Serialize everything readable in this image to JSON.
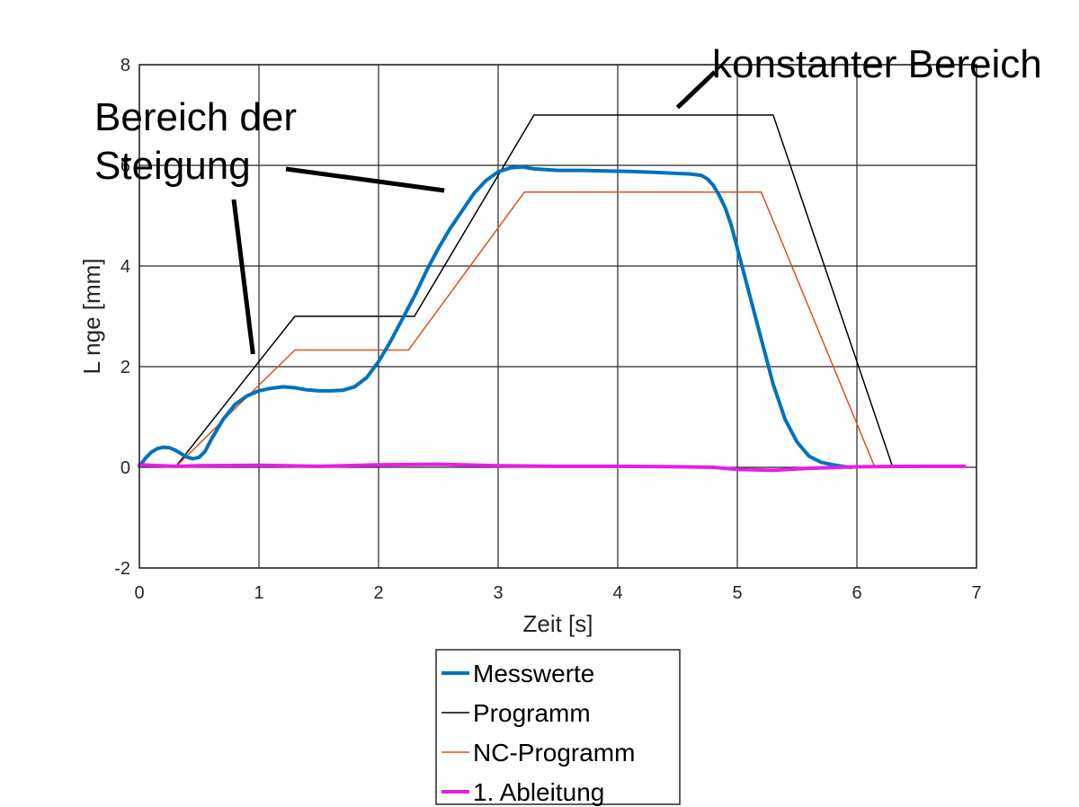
{
  "chart_data": {
    "type": "line",
    "title": "",
    "xlabel": "Zeit [s]",
    "ylabel": "L nge [mm]",
    "xlim": [
      0,
      7
    ],
    "ylim": [
      -2,
      8
    ],
    "xticks": [
      "0",
      "1",
      "2",
      "3",
      "4",
      "5",
      "6",
      "7"
    ],
    "yticks": [
      "-2",
      "0",
      "2",
      "4",
      "6",
      "8"
    ],
    "grid": true,
    "legend_position": "below plot",
    "series": [
      {
        "name": "Messwerte",
        "color": "#0072BD",
        "width": 4,
        "x": [
          0,
          0.05,
          0.1,
          0.15,
          0.2,
          0.25,
          0.3,
          0.35,
          0.4,
          0.45,
          0.5,
          0.55,
          0.6,
          0.7,
          0.8,
          0.9,
          1.0,
          1.1,
          1.2,
          1.3,
          1.4,
          1.5,
          1.6,
          1.7,
          1.8,
          1.9,
          2.0,
          2.1,
          2.2,
          2.3,
          2.4,
          2.5,
          2.6,
          2.7,
          2.8,
          2.9,
          3.0,
          3.1,
          3.2,
          3.3,
          3.5,
          3.7,
          3.9,
          4.1,
          4.3,
          4.5,
          4.6,
          4.7,
          4.75,
          4.8,
          4.85,
          4.9,
          4.95,
          5.0,
          5.1,
          5.2,
          5.3,
          5.4,
          5.5,
          5.6,
          5.7,
          5.8,
          5.9,
          5.95
        ],
        "y": [
          0.02,
          0.18,
          0.3,
          0.37,
          0.4,
          0.39,
          0.34,
          0.27,
          0.2,
          0.17,
          0.2,
          0.32,
          0.55,
          0.95,
          1.25,
          1.42,
          1.52,
          1.57,
          1.6,
          1.58,
          1.54,
          1.52,
          1.52,
          1.53,
          1.6,
          1.78,
          2.1,
          2.5,
          2.95,
          3.4,
          3.9,
          4.35,
          4.75,
          5.1,
          5.45,
          5.7,
          5.87,
          5.95,
          5.97,
          5.93,
          5.9,
          5.9,
          5.89,
          5.88,
          5.86,
          5.84,
          5.83,
          5.8,
          5.73,
          5.6,
          5.4,
          5.15,
          4.8,
          4.35,
          3.45,
          2.55,
          1.65,
          0.95,
          0.5,
          0.22,
          0.1,
          0.05,
          0.01,
          0.0
        ]
      },
      {
        "name": "Programm",
        "color": "#000000",
        "width": 1.5,
        "x": [
          0.3,
          1.3,
          2.3,
          3.3,
          5.3,
          6.3
        ],
        "y": [
          0.0,
          3.0,
          3.0,
          7.0,
          7.0,
          0.0
        ]
      },
      {
        "name": "NC-Programm",
        "color": "#D95319",
        "width": 1.5,
        "x": [
          0.3,
          1.3,
          2.25,
          3.22,
          5.2,
          6.15
        ],
        "y": [
          0.0,
          2.33,
          2.33,
          5.47,
          5.47,
          0.0
        ]
      },
      {
        "name": "1. Ableitung",
        "color": "#E81CE8",
        "width": 4,
        "x": [
          0,
          0.3,
          0.5,
          1.0,
          1.5,
          2.0,
          2.5,
          3.0,
          3.5,
          4.0,
          4.5,
          4.8,
          5.0,
          5.3,
          5.6,
          6.0,
          6.5,
          6.9
        ],
        "y": [
          0.05,
          0.02,
          0.03,
          0.04,
          0.02,
          0.05,
          0.06,
          0.03,
          0.02,
          0.02,
          0.01,
          0.0,
          -0.04,
          -0.06,
          -0.02,
          0.01,
          0.02,
          0.02
        ]
      }
    ],
    "annotations": [
      {
        "text": "konstanter Bereich",
        "pointer_to": [
          4.5,
          7.15
        ]
      },
      {
        "text_lines": [
          "Bereich der",
          "Steigung"
        ],
        "pointers_to": [
          [
            0.95,
            2.25
          ],
          [
            2.55,
            5.5
          ]
        ]
      }
    ]
  }
}
